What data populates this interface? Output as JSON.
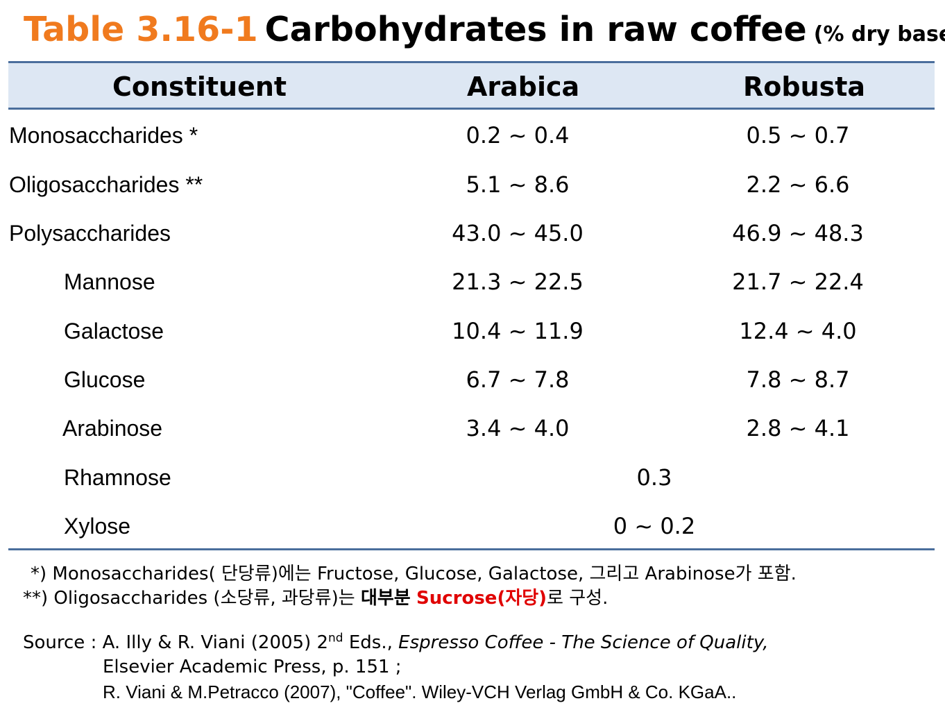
{
  "title": {
    "number": "Table 3.16-1",
    "main": "Carbohydrates in raw coffee",
    "unit": "(% dry base)"
  },
  "header": {
    "col1": "Constituent",
    "col2": "Arabica",
    "col3": "Robusta"
  },
  "rows": [
    {
      "name": "Monosaccharides *",
      "arabica": "0.2 ~ 0.4",
      "robusta": "0.5 ~ 0.7"
    },
    {
      "name": "Oligosaccharides **",
      "arabica": "5.1 ~ 8.6",
      "robusta": "2.2 ~ 6.6"
    },
    {
      "name": "Polysaccharides",
      "arabica": "43.0 ~ 45.0",
      "robusta": "46.9 ~ 48.3"
    },
    {
      "name": "Mannose",
      "arabica": "21.3 ~ 22.5",
      "robusta": "21.7 ~ 22.4"
    },
    {
      "name": "Galactose",
      "arabica": "10.4 ~ 11.9",
      "robusta": "12.4 ~ 4.0"
    },
    {
      "name": "Glucose",
      "arabica": "6.7 ~ 7.8",
      "robusta": "7.8 ~ 8.7"
    },
    {
      "name": "Arabinose",
      "arabica": "3.4 ~ 4.0",
      "robusta": "2.8 ~ 4.1"
    },
    {
      "name": "Rhamnose",
      "both": "0.3"
    },
    {
      "name": "Xylose",
      "both": "0 ~ 0.2"
    }
  ],
  "notes": {
    "note1": "*) Monosaccharides( 단당류)에는 Fructose, Glucose, Galactose, 그리고 Arabinose가 포함.",
    "note2_prefix": "**) Oligosaccharides (소당류, 과당류)는 ",
    "note2_bold": "대부분",
    "note2_red": "Sucrose(자당)",
    "note2_suffix": "로 구성."
  },
  "source": {
    "label": "Source :",
    "line1_a": "A. Illy & R. Viani (2005) 2",
    "line1_sup": "nd",
    "line1_b": " Eds., ",
    "line1_italic": "Espresso Coffee - The Science of Quality,",
    "line2": "Elsevier   Academic Press, p. 151 ;",
    "line3": "R. Viani & M.Petracco (2007), \"Coffee\". Wiley-VCH Verlag GmbH & Co. KGaA.."
  },
  "colors": {
    "title_number": "#f07a1e",
    "header_bg": "#dde7f3",
    "rule": "#4a6e9c",
    "highlight": "#e00000"
  }
}
